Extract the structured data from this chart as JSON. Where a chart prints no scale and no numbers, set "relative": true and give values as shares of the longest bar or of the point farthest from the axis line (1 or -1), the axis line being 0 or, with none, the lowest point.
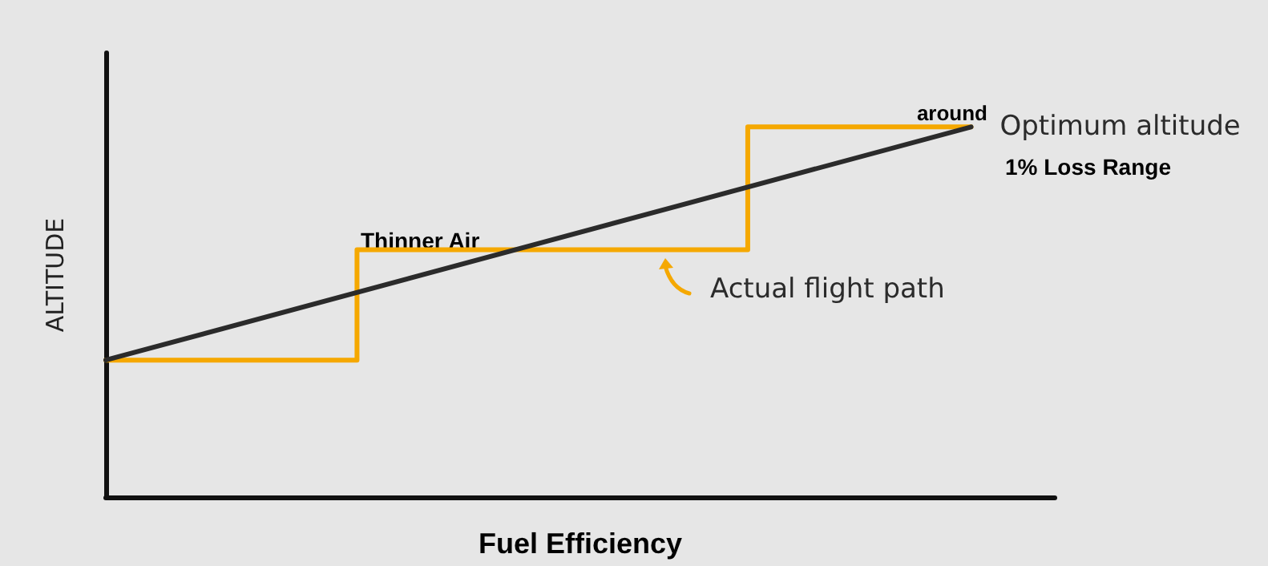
{
  "chart_data": {
    "type": "line",
    "relative": true,
    "xlabel": "Fuel Efficiency",
    "ylabel": "ALTITUDE",
    "categories": [
      null,
      null,
      null,
      null,
      null,
      null,
      null,
      null,
      null,
      null,
      null,
      null,
      null,
      null,
      null,
      null,
      null,
      null,
      null,
      null,
      null,
      null,
      null,
      null,
      null,
      null,
      null,
      null,
      null,
      null,
      null,
      null,
      null,
      null,
      null
    ],
    "series": [
      {
        "name": "Optimum altitude",
        "color": "#2b2b2b",
        "values": [
          0.37,
          null,
          null,
          null,
          null,
          null,
          null,
          null,
          null,
          null,
          null,
          null,
          null,
          null,
          null,
          null,
          null,
          null,
          null,
          null,
          null,
          null,
          null,
          null,
          null,
          null,
          null,
          null,
          null,
          null,
          null,
          1,
          null,
          null,
          null
        ]
      },
      {
        "type": "step",
        "color": "#f5a800",
        "values": [
          0.37,
          null,
          null,
          null,
          null,
          null,
          null,
          null,
          null,
          0.668,
          null,
          null,
          null,
          null,
          null,
          null,
          null,
          null,
          null,
          null,
          null,
          null,
          null,
          1,
          null,
          null,
          null,
          null,
          null,
          null,
          null,
          1,
          null,
          null,
          null
        ]
      }
    ],
    "annotations": [
      "around",
      "1% Loss Range",
      "Thinner Air",
      "Actual flight path"
    ],
    "legend": false,
    "grid": false,
    "marker": "none",
    "line_style": "solid"
  }
}
